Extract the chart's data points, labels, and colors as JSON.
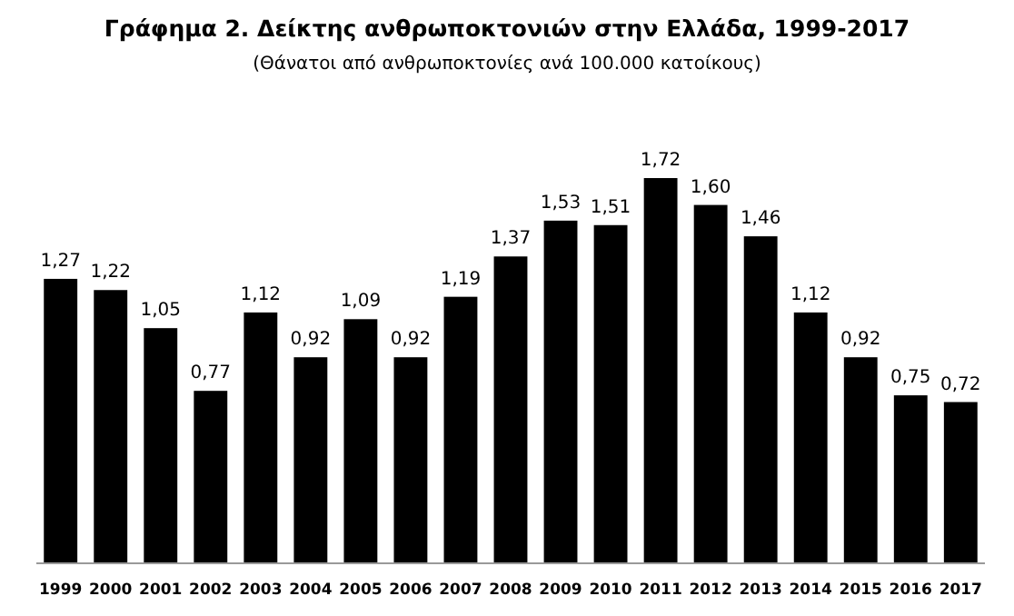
{
  "chart_data": {
    "type": "bar",
    "title": "Γράφημα 2. Δείκτης ανθρωποκτονιών στην Ελλάδα, 1999-2017",
    "subtitle": "(Θάνατοι από ανθρωποκτονίες ανά 100.000 κατοίκους)",
    "categories": [
      "1999",
      "2000",
      "2001",
      "2002",
      "2003",
      "2004",
      "2005",
      "2006",
      "2007",
      "2008",
      "2009",
      "2010",
      "2011",
      "2012",
      "2013",
      "2014",
      "2015",
      "2016",
      "2017"
    ],
    "values": [
      1.27,
      1.22,
      1.05,
      0.77,
      1.12,
      0.92,
      1.09,
      0.92,
      1.19,
      1.37,
      1.53,
      1.51,
      1.72,
      1.6,
      1.46,
      1.12,
      0.92,
      0.75,
      0.72
    ],
    "value_labels": [
      "1,27",
      "1,22",
      "1,05",
      "0,77",
      "1,12",
      "0,92",
      "1,09",
      "0,92",
      "1,19",
      "1,37",
      "1,53",
      "1,51",
      "1,72",
      "1,60",
      "1,46",
      "1,12",
      "0,92",
      "0,75",
      "0,72"
    ],
    "color": "#000000",
    "grid": false
  }
}
